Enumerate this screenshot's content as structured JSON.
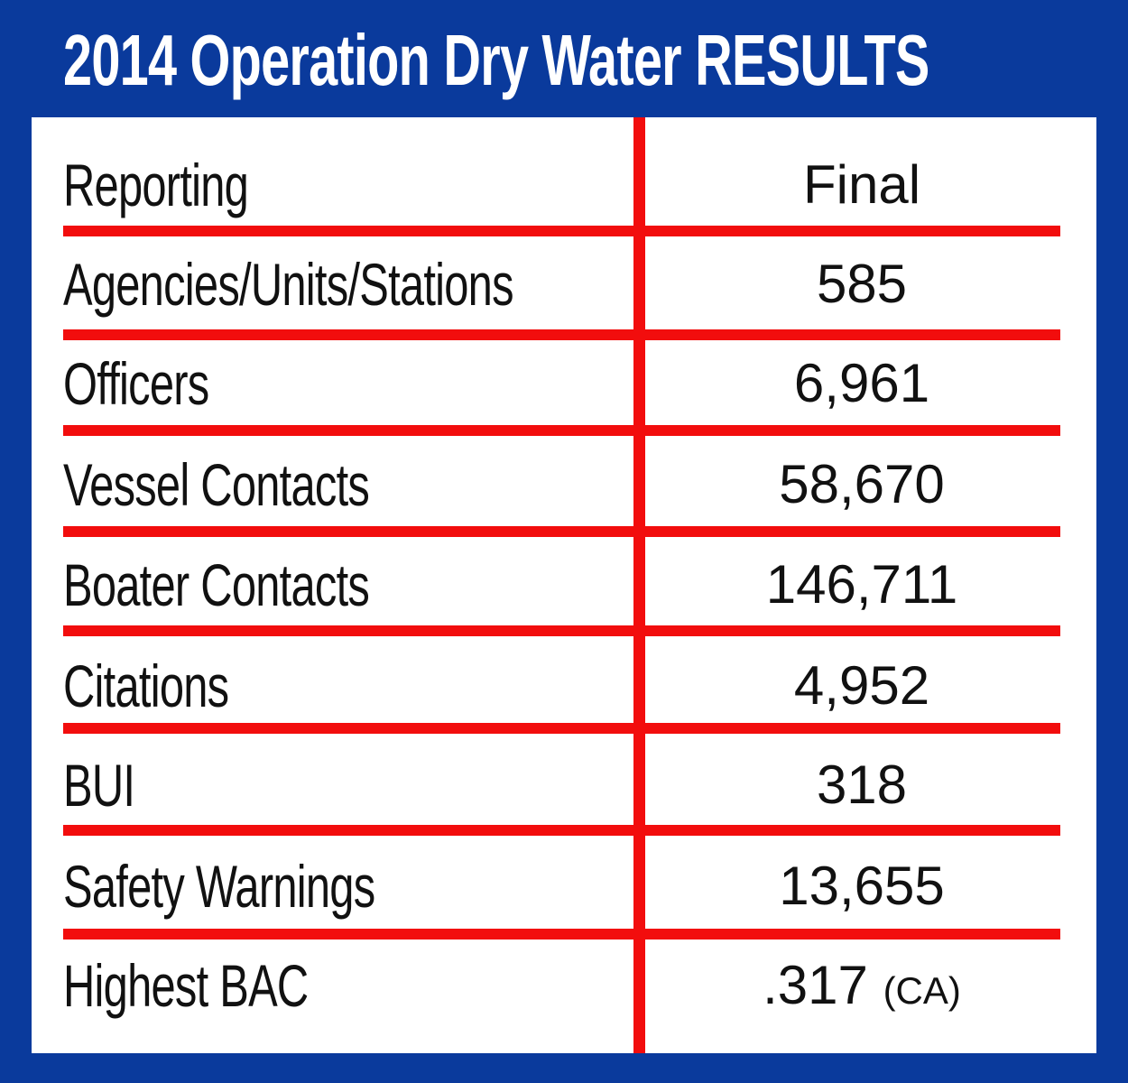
{
  "title": "2014 Operation Dry Water RESULTS",
  "colors": {
    "background": "#0a3a9c",
    "panel": "#ffffff",
    "rules": "#f20d0d"
  },
  "chart_data": {
    "type": "table",
    "title": "2014 Operation Dry Water RESULTS",
    "columns": [
      "Reporting",
      "Final"
    ],
    "rows": [
      {
        "label": "Agencies/Units/Stations",
        "value": "585"
      },
      {
        "label": "Officers",
        "value": "6,961"
      },
      {
        "label": "Vessel Contacts",
        "value": "58,670"
      },
      {
        "label": "Boater Contacts",
        "value": "146,711"
      },
      {
        "label": "Citations",
        "value": "4,952"
      },
      {
        "label": "BUI",
        "value": "318"
      },
      {
        "label": "Safety Warnings",
        "value": "13,655"
      },
      {
        "label": "Highest BAC",
        "value": ".317",
        "note": "(CA)"
      }
    ]
  }
}
